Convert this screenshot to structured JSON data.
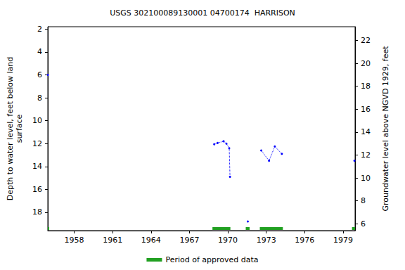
{
  "chart_data": {
    "type": "line",
    "title": "USGS 302100089130001 04700174  HARRISON",
    "y_label": "Depth to water level, feet below land\nsurface",
    "y2_label": "Groundwater level above NGVD 1929, feet",
    "x": [
      1955.95,
      null,
      1968.94,
      1969.2,
      1969.67,
      1969.89,
      1970.11,
      1970.17,
      null,
      1971.56,
      null,
      1972.61,
      1973.22,
      1973.67,
      1974.22,
      null,
      1979.89
    ],
    "series": [
      {
        "color": "#0000ff",
        "marker": "circle",
        "line_style": "dotted",
        "values": [
          6.0,
          null,
          12.06,
          11.95,
          11.8,
          12.0,
          12.4,
          14.9,
          null,
          18.8,
          null,
          12.6,
          13.5,
          12.25,
          12.9,
          null,
          13.5
        ]
      }
    ],
    "xlim": [
      1955.94,
      1979.94
    ],
    "xticks": [
      1958,
      1961,
      1964,
      1967,
      1970,
      1973,
      1976,
      1979
    ],
    "ylim": [
      1.8,
      19.6
    ],
    "yticks": [
      2,
      4,
      6,
      8,
      10,
      12,
      14,
      16,
      18
    ],
    "y2lim": [
      5.4,
      23.2
    ],
    "y2ticks": [
      6,
      8,
      10,
      12,
      14,
      16,
      18,
      20,
      22
    ],
    "grid": false,
    "legend": "bottom",
    "approved_periods": {
      "name": "Period of approved data",
      "color": "#22a022",
      "periods": [
        [
          1955.8,
          1956.05
        ],
        [
          1968.8,
          1970.2
        ],
        [
          1971.4,
          1971.7
        ],
        [
          1972.5,
          1974.3
        ],
        [
          1979.7,
          1980.0
        ]
      ]
    }
  }
}
